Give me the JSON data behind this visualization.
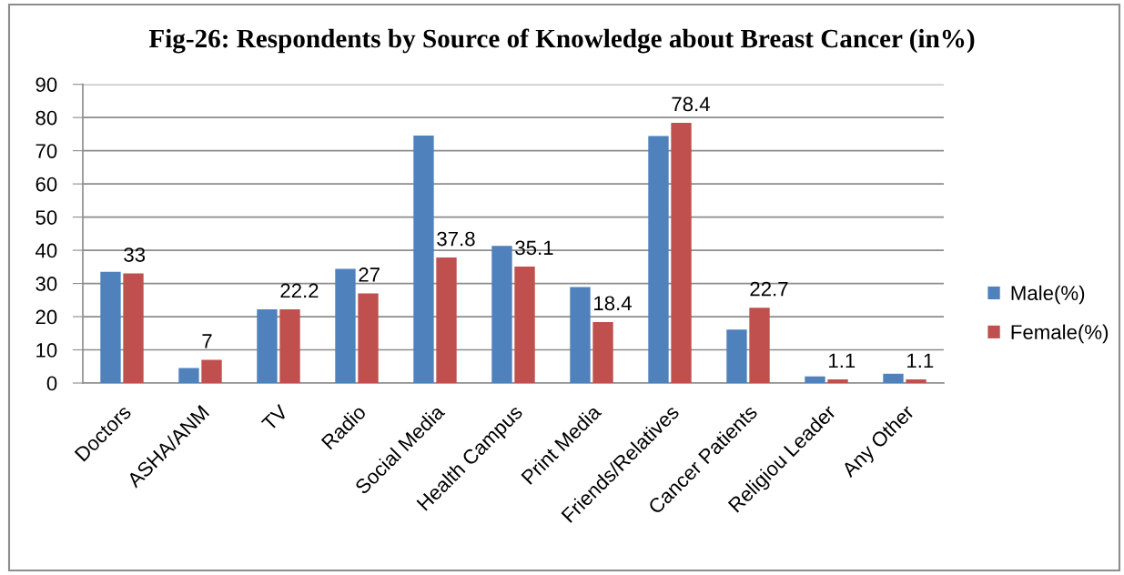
{
  "chart_data": {
    "type": "bar",
    "title": "Fig-26: Respondents by Source of Knowledge about Breast Cancer (in%)",
    "categories": [
      "Doctors",
      "ASHA/ANM",
      "TV",
      "Radio",
      "Social Media",
      "Health Campus",
      "Print Media",
      "Friends/Relatives",
      "Cancer Patients",
      "Religiou Leader",
      "Any Other"
    ],
    "series": [
      {
        "name": "Male(%)",
        "color": "#4f81bd",
        "values": [
          33.5,
          4.5,
          22.2,
          34.4,
          74.6,
          41.3,
          28.9,
          74.4,
          16.1,
          2.0,
          2.8
        ]
      },
      {
        "name": "Female(%)",
        "color": "#c0504d",
        "values": [
          33,
          7,
          22.2,
          27,
          37.8,
          35.1,
          18.4,
          78.4,
          22.7,
          1.1,
          1.1
        ],
        "value_labels": [
          "33",
          "7",
          "22.2",
          "27",
          "37.8",
          "35.1",
          "18.4",
          "78.4",
          "22.7",
          "1.1",
          "1.1"
        ]
      }
    ],
    "ylim": [
      0,
      90
    ],
    "yticks": [
      0,
      10,
      20,
      30,
      40,
      50,
      60,
      70,
      80,
      90
    ],
    "grid": "y",
    "legend": "right"
  }
}
